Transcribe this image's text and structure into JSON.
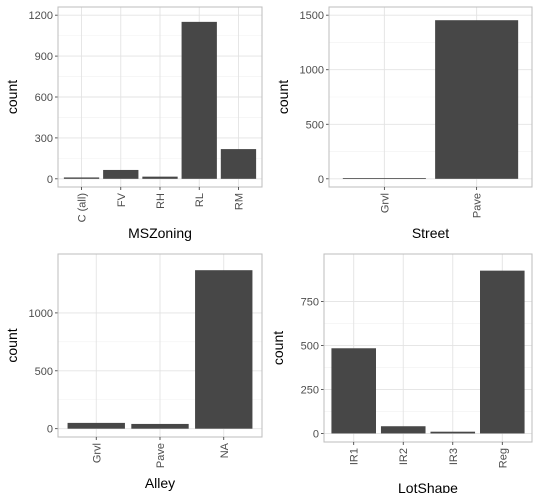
{
  "chart_data": [
    {
      "type": "bar",
      "xlabel": "MSZoning",
      "ylabel": "count",
      "categories": [
        "C (all)",
        "FV",
        "RH",
        "RL",
        "RM"
      ],
      "values": [
        10,
        65,
        16,
        1151,
        218
      ],
      "ylim": [
        0,
        1200
      ],
      "yticks": [
        0,
        300,
        600,
        900,
        1200
      ],
      "grid": true,
      "colors": {
        "bar": "#474747"
      }
    },
    {
      "type": "bar",
      "xlabel": "Street",
      "ylabel": "count",
      "categories": [
        "Grvl",
        "Pave"
      ],
      "values": [
        6,
        1454
      ],
      "ylim": [
        0,
        1500
      ],
      "yticks": [
        0,
        500,
        1000,
        1500
      ],
      "grid": true,
      "colors": {
        "bar": "#474747"
      }
    },
    {
      "type": "bar",
      "xlabel": "Alley",
      "ylabel": "count",
      "categories": [
        "Grvl",
        "Pave",
        "NA"
      ],
      "values": [
        50,
        41,
        1369
      ],
      "ylim": [
        0,
        1437
      ],
      "yticks": [
        0,
        500,
        1000
      ],
      "grid": true,
      "colors": {
        "bar": "#474747"
      }
    },
    {
      "type": "bar",
      "xlabel": "LotShape",
      "ylabel": "count",
      "categories": [
        "IR1",
        "IR2",
        "IR3",
        "Reg"
      ],
      "values": [
        484,
        41,
        10,
        925
      ],
      "ylim": [
        0,
        971
      ],
      "yticks": [
        0,
        250,
        500,
        750
      ],
      "grid": true,
      "colors": {
        "bar": "#474747"
      }
    }
  ]
}
